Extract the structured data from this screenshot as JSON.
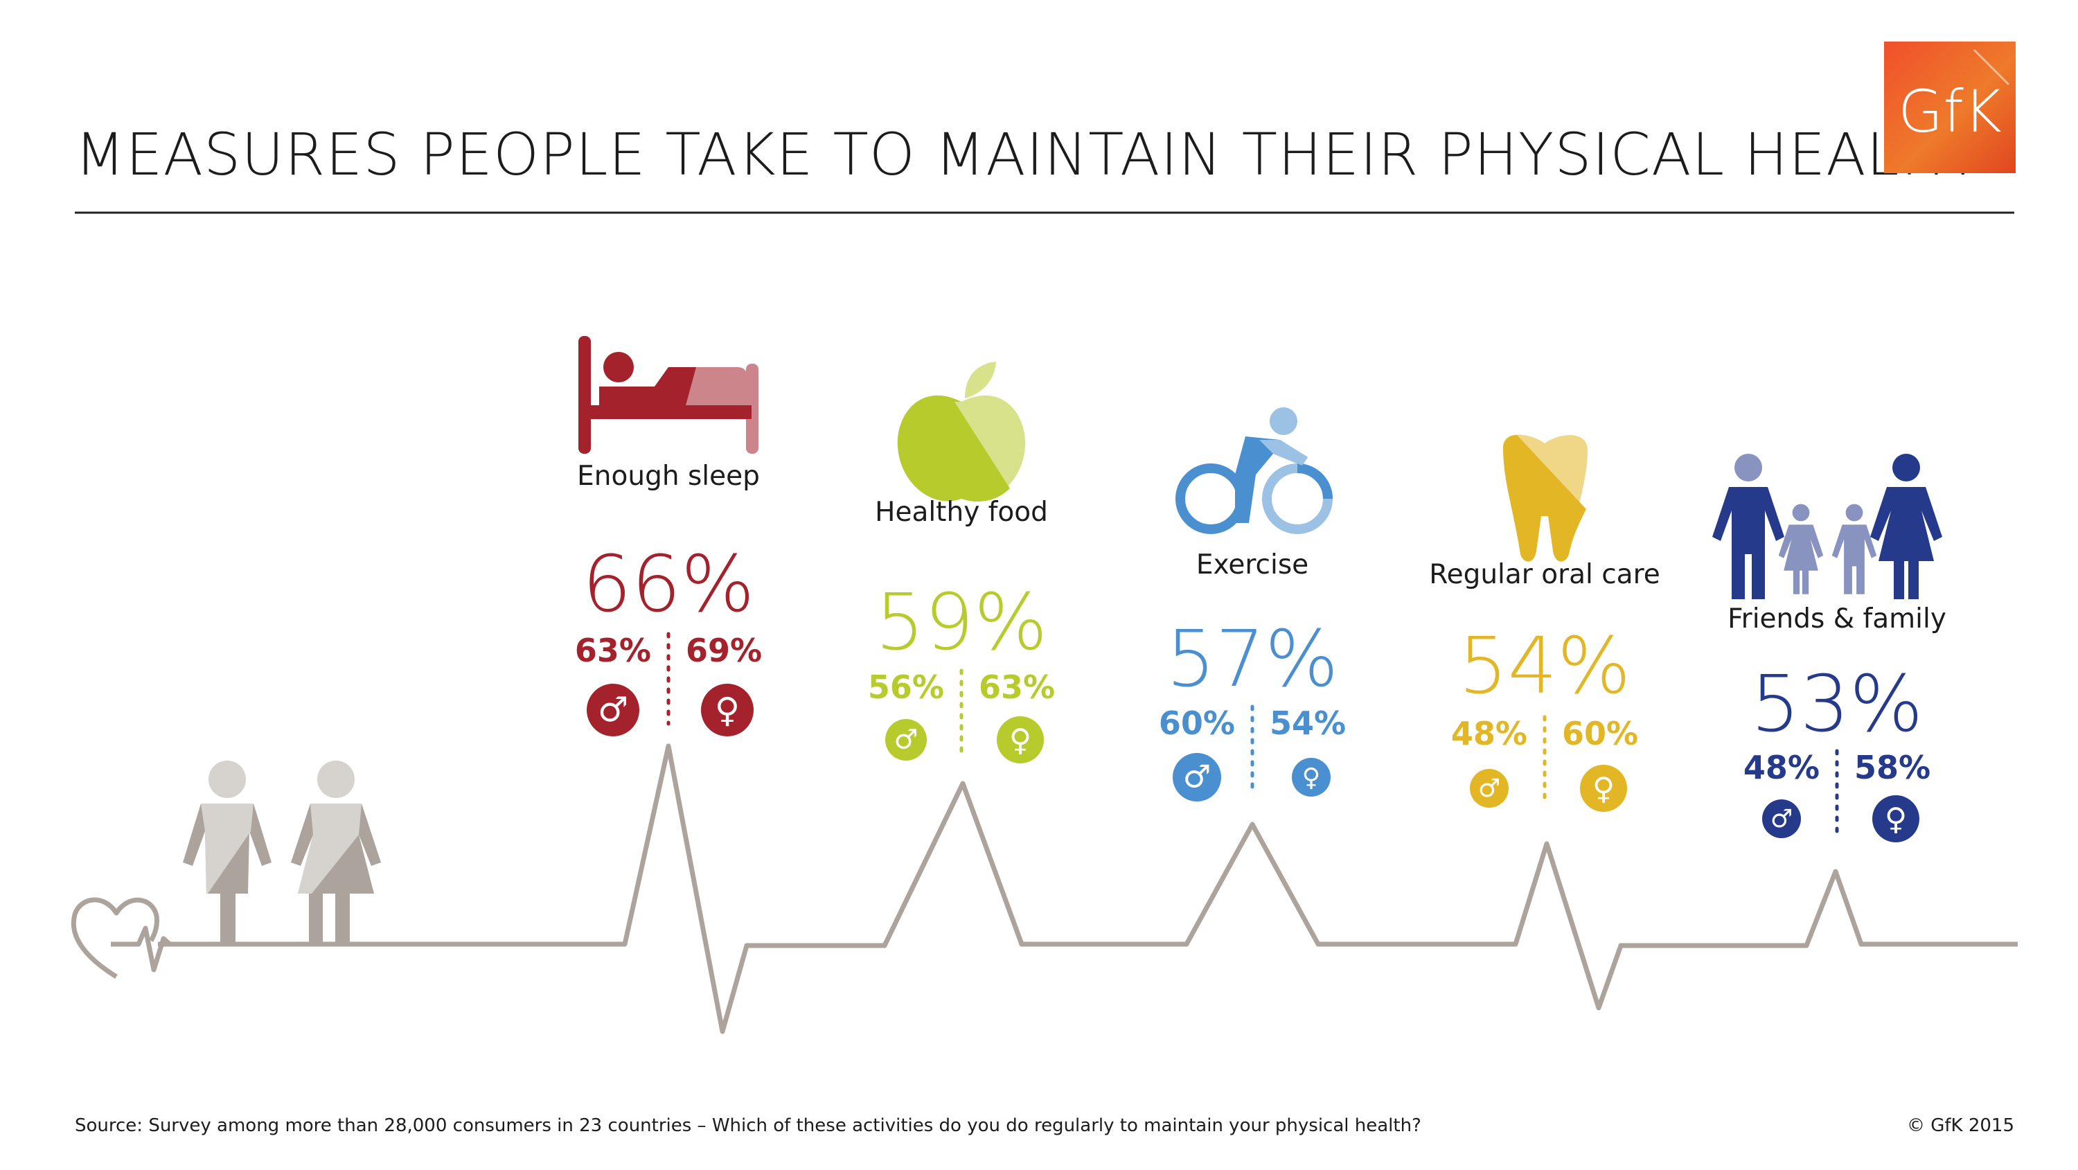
{
  "header": {
    "title": "MEASURES PEOPLE TAKE TO MAINTAIN THEIR PHYSICAL HEALTH",
    "logo_text": "GfK"
  },
  "chart_data": {
    "type": "bar",
    "title": "MEASURES PEOPLE TAKE TO MAINTAIN THEIR PHYSICAL HEALTH",
    "categories": [
      "Enough sleep",
      "Healthy food",
      "Exercise",
      "Regular oral care",
      "Friends & family"
    ],
    "values": [
      66,
      59,
      57,
      54,
      53
    ],
    "series": [
      {
        "name": "Total",
        "values": [
          66,
          59,
          57,
          54,
          53
        ]
      },
      {
        "name": "♂",
        "values": [
          63,
          56,
          60,
          48,
          48
        ]
      },
      {
        "name": "♀",
        "values": [
          69,
          63,
          54,
          60,
          58
        ]
      }
    ],
    "unit": "%",
    "icons": [
      "bed-icon",
      "apple-icon",
      "cyclist-icon",
      "tooth-icon",
      "family-icon"
    ],
    "colors": [
      "#a3222b",
      "#b7cb2c",
      "#4a8fd0",
      "#e2b625",
      "#263a8c"
    ],
    "wave_color": "#aca39d"
  },
  "footer": {
    "source": "Source: Survey among more than 28,000 consumers in 23 countries – Which of these activities do you do regularly to maintain your physical health?",
    "copyright": "© GfK 2015"
  }
}
